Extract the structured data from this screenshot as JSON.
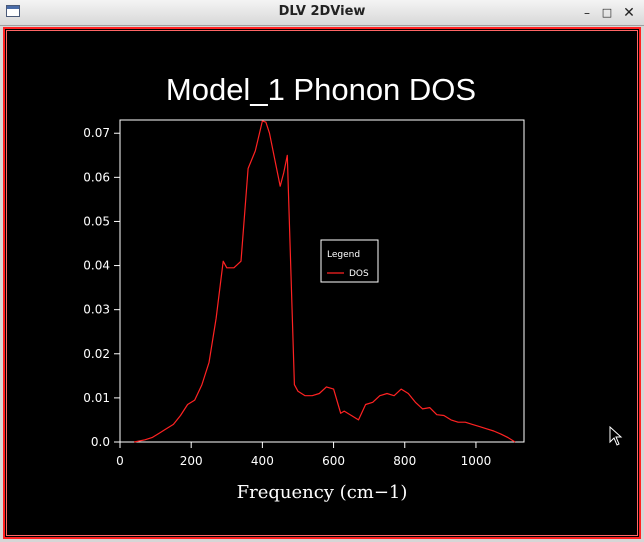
{
  "window": {
    "title": "DLV 2DView",
    "minimize_glyph": "–",
    "maximize_glyph": "□",
    "close_glyph": "✕"
  },
  "colors": {
    "background": "#000000",
    "axes": "#ffffff",
    "series": "#ff2222",
    "frame_border": "#ff2222"
  },
  "chart_data": {
    "type": "line",
    "title": "Model_1 Phonon DOS",
    "xlabel": "Frequency (cm−1)",
    "ylabel": "",
    "xlim": [
      0,
      1135
    ],
    "ylim": [
      0,
      0.073
    ],
    "x_ticks": [
      0,
      200,
      400,
      600,
      800,
      1000
    ],
    "y_ticks": [
      0.0,
      0.01,
      0.02,
      0.03,
      0.04,
      0.05,
      0.06,
      0.07
    ],
    "y_tick_labels": [
      "0.0",
      "0.01",
      "0.02",
      "0.03",
      "0.04",
      "0.05",
      "0.06",
      "0.07"
    ],
    "grid": false,
    "legend": {
      "title": "Legend",
      "placement": "center-right"
    },
    "series": [
      {
        "name": "DOS",
        "color": "#ff2222",
        "x": [
          40,
          70,
          90,
          110,
          130,
          150,
          170,
          190,
          210,
          230,
          250,
          270,
          290,
          300,
          320,
          340,
          360,
          380,
          400,
          410,
          420,
          440,
          450,
          460,
          470,
          490,
          500,
          520,
          540,
          560,
          580,
          600,
          620,
          630,
          650,
          670,
          690,
          710,
          730,
          750,
          770,
          790,
          810,
          830,
          850,
          870,
          890,
          910,
          930,
          950,
          970,
          990,
          1010,
          1030,
          1050,
          1070,
          1090,
          1110
        ],
        "y": [
          0.0,
          0.0005,
          0.001,
          0.002,
          0.003,
          0.004,
          0.006,
          0.0085,
          0.0095,
          0.013,
          0.018,
          0.028,
          0.041,
          0.0395,
          0.0395,
          0.041,
          0.062,
          0.066,
          0.0728,
          0.0725,
          0.07,
          0.062,
          0.058,
          0.061,
          0.065,
          0.013,
          0.0115,
          0.0105,
          0.0105,
          0.011,
          0.0125,
          0.012,
          0.0065,
          0.007,
          0.006,
          0.005,
          0.0085,
          0.009,
          0.0105,
          0.011,
          0.0105,
          0.012,
          0.011,
          0.009,
          0.0075,
          0.0078,
          0.0062,
          0.006,
          0.005,
          0.0045,
          0.0045,
          0.004,
          0.0035,
          0.003,
          0.0025,
          0.0018,
          0.001,
          0.0
        ]
      }
    ]
  }
}
